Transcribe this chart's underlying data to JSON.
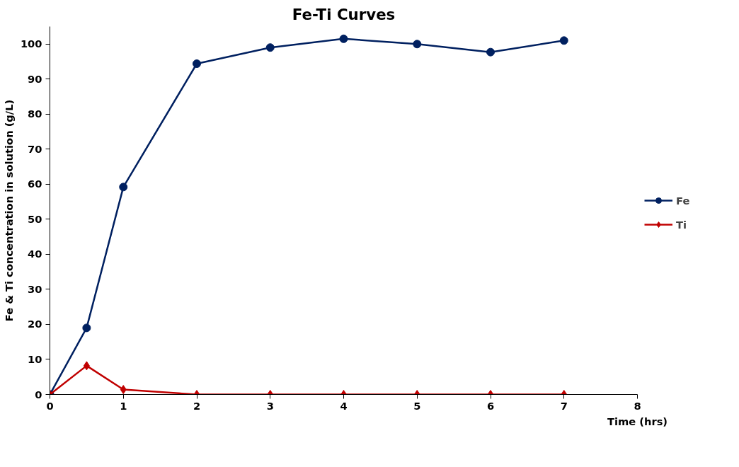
{
  "chart_data": {
    "type": "line",
    "title": "Fe-Ti Curves",
    "xlabel": "Time (hrs)",
    "ylabel": "Fe & Ti concentration in solution (g/L)",
    "x": [
      0,
      0.5,
      1,
      2,
      3,
      4,
      5,
      6,
      7
    ],
    "series": [
      {
        "name": "Fe",
        "color": "#002060",
        "marker": "circle",
        "values": [
          0,
          19,
          59.2,
          94.4,
          99,
          101.5,
          100,
          97.7,
          101
        ]
      },
      {
        "name": "Ti",
        "color": "#c00000",
        "marker": "diamond",
        "values": [
          0,
          8.2,
          1.4,
          0,
          0,
          0,
          0,
          0,
          0
        ]
      }
    ],
    "xlim": [
      0,
      8
    ],
    "xticks": [
      0,
      1,
      2,
      3,
      4,
      5,
      6,
      7,
      8
    ],
    "ylim": [
      0,
      105
    ],
    "yticks": [
      0,
      10,
      20,
      30,
      40,
      50,
      60,
      70,
      80,
      90,
      100
    ],
    "grid": false,
    "legend": "right",
    "line_style": "solid"
  }
}
